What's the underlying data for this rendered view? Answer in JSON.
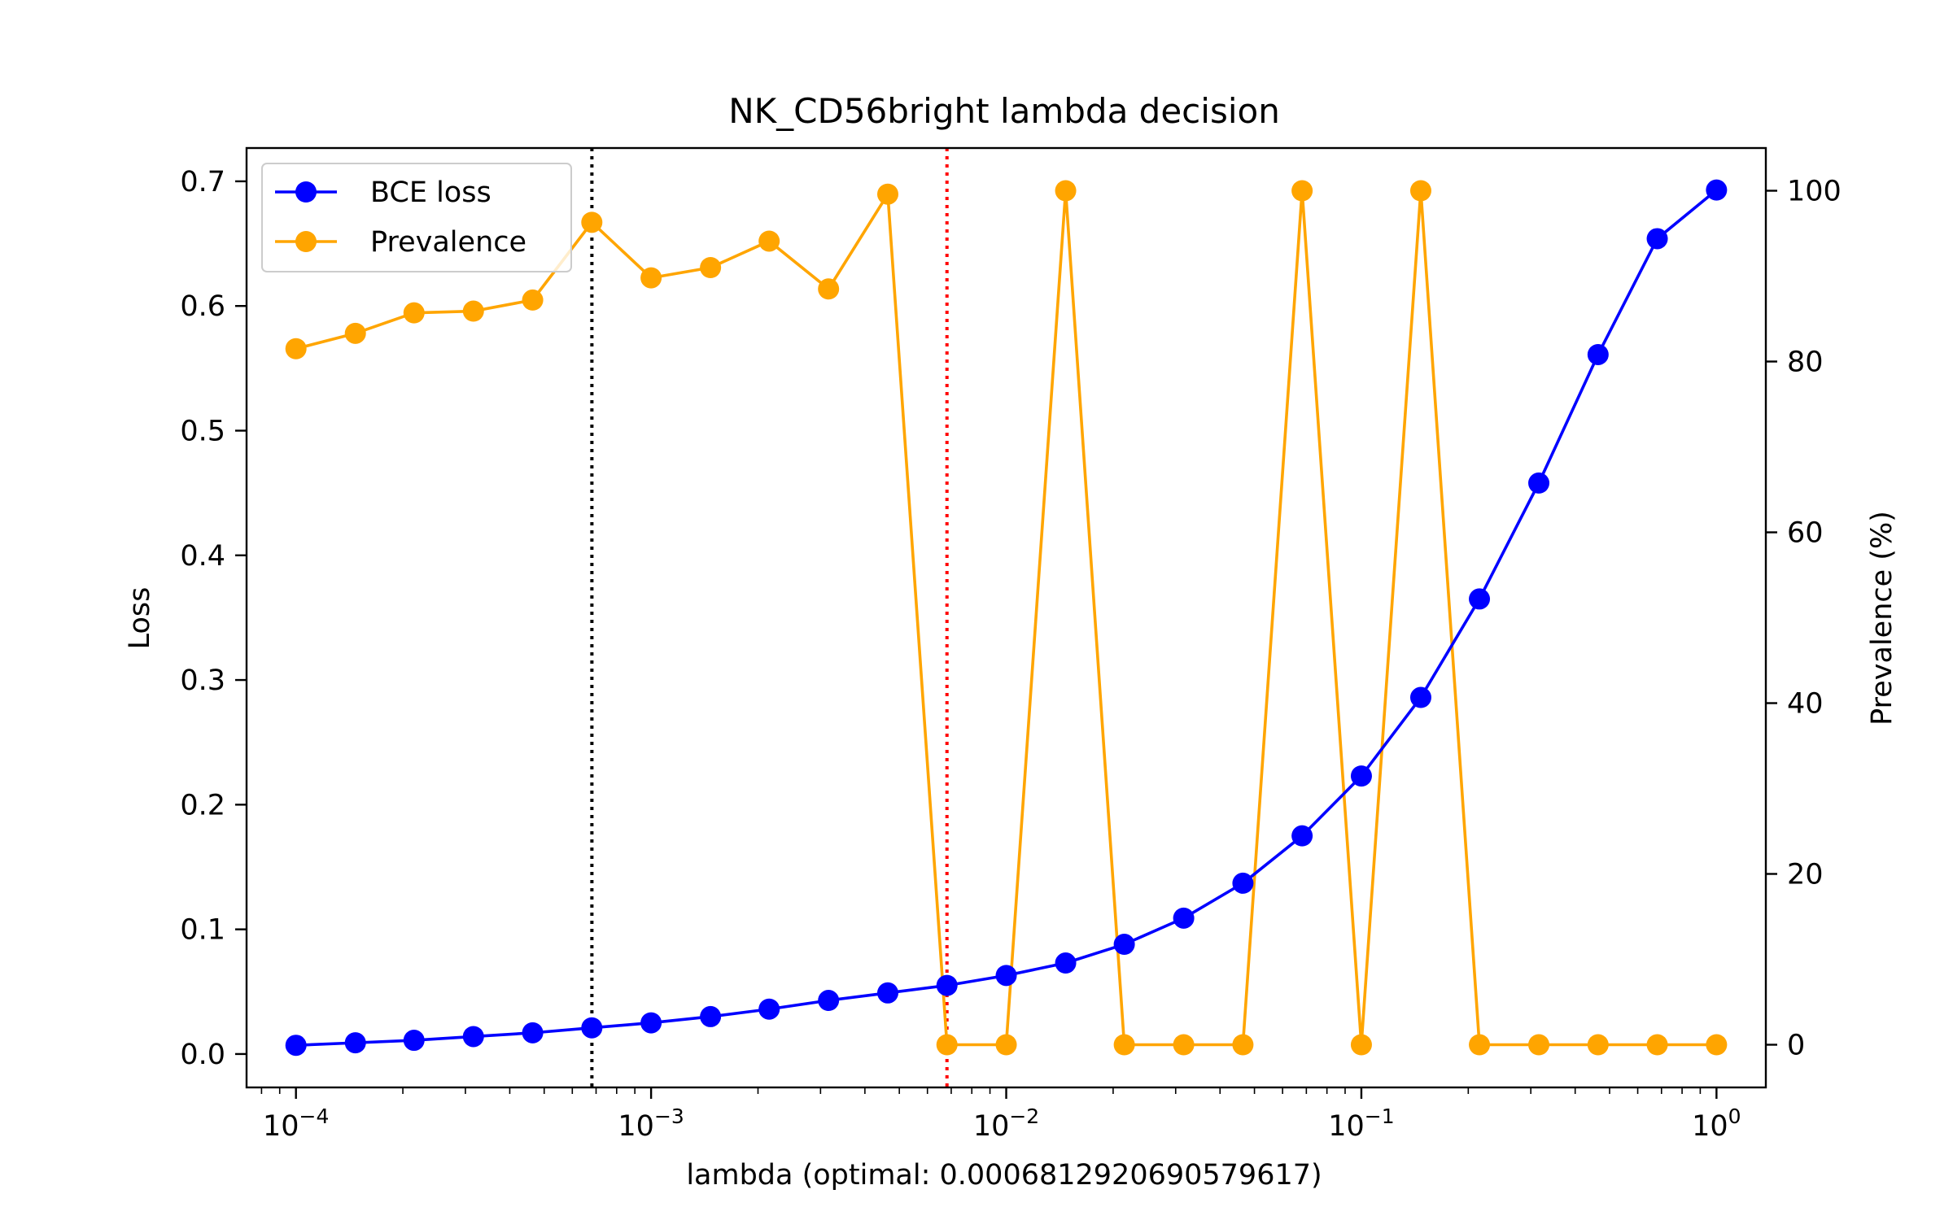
{
  "chart_data": {
    "type": "line",
    "title": "NK_CD56bright lambda decision",
    "xlabel": "lambda (optimal: 0.0006812920690579617)",
    "ylabel_left": "Loss",
    "ylabel_right": "Prevalence (%)",
    "x_scale": "log",
    "xlim": [
      7.26e-05,
      1.377
    ],
    "ylim_left": [
      -0.0268,
      0.7267
    ],
    "ylim_right": [
      -5,
      105
    ],
    "x_ticks": [
      {
        "value": 0.0001,
        "base": "10",
        "exp": "−4"
      },
      {
        "value": 0.001,
        "base": "10",
        "exp": "−3"
      },
      {
        "value": 0.01,
        "base": "10",
        "exp": "−2"
      },
      {
        "value": 0.1,
        "base": "10",
        "exp": "−1"
      },
      {
        "value": 1,
        "base": "10",
        "exp": "0"
      }
    ],
    "y_ticks_left": [
      {
        "value": 0.0,
        "label": "0.0"
      },
      {
        "value": 0.1,
        "label": "0.1"
      },
      {
        "value": 0.2,
        "label": "0.2"
      },
      {
        "value": 0.3,
        "label": "0.3"
      },
      {
        "value": 0.4,
        "label": "0.4"
      },
      {
        "value": 0.5,
        "label": "0.5"
      },
      {
        "value": 0.6,
        "label": "0.6"
      },
      {
        "value": 0.7,
        "label": "0.7"
      }
    ],
    "y_ticks_right": [
      {
        "value": 0,
        "label": "0"
      },
      {
        "value": 20,
        "label": "20"
      },
      {
        "value": 40,
        "label": "40"
      },
      {
        "value": 60,
        "label": "60"
      },
      {
        "value": 80,
        "label": "80"
      },
      {
        "value": 100,
        "label": "100"
      }
    ],
    "x": [
      0.0001,
      0.000147,
      0.000215,
      0.000316,
      0.000464,
      0.000681,
      0.001,
      0.00147,
      0.00215,
      0.00316,
      0.00464,
      0.00681,
      0.01,
      0.0147,
      0.0215,
      0.0316,
      0.0464,
      0.0681,
      0.1,
      0.147,
      0.215,
      0.316,
      0.464,
      0.681,
      1.0
    ],
    "series": [
      {
        "name": "BCE loss",
        "axis": "left",
        "color": "#0000ff",
        "values": [
          0.007,
          0.009,
          0.011,
          0.014,
          0.017,
          0.021,
          0.025,
          0.03,
          0.036,
          0.043,
          0.049,
          0.055,
          0.063,
          0.073,
          0.088,
          0.109,
          0.137,
          0.175,
          0.223,
          0.286,
          0.365,
          0.458,
          0.561,
          0.654,
          0.693
        ]
      },
      {
        "name": "Prevalence",
        "axis": "right",
        "color": "#ffa500",
        "values": [
          81.5,
          83.3,
          85.7,
          85.9,
          87.2,
          96.3,
          89.8,
          91.0,
          94.1,
          88.5,
          99.6,
          0,
          0,
          100,
          0,
          0,
          0,
          100,
          0,
          100,
          0,
          0,
          0,
          0,
          0
        ]
      }
    ],
    "vlines": [
      {
        "x": 0.0006812920690579617,
        "color": "#000000",
        "style": "dotted"
      },
      {
        "x": 0.00681,
        "color": "#ff0000",
        "style": "dotted"
      }
    ],
    "legend": {
      "position": "top-left"
    },
    "grid": false
  }
}
